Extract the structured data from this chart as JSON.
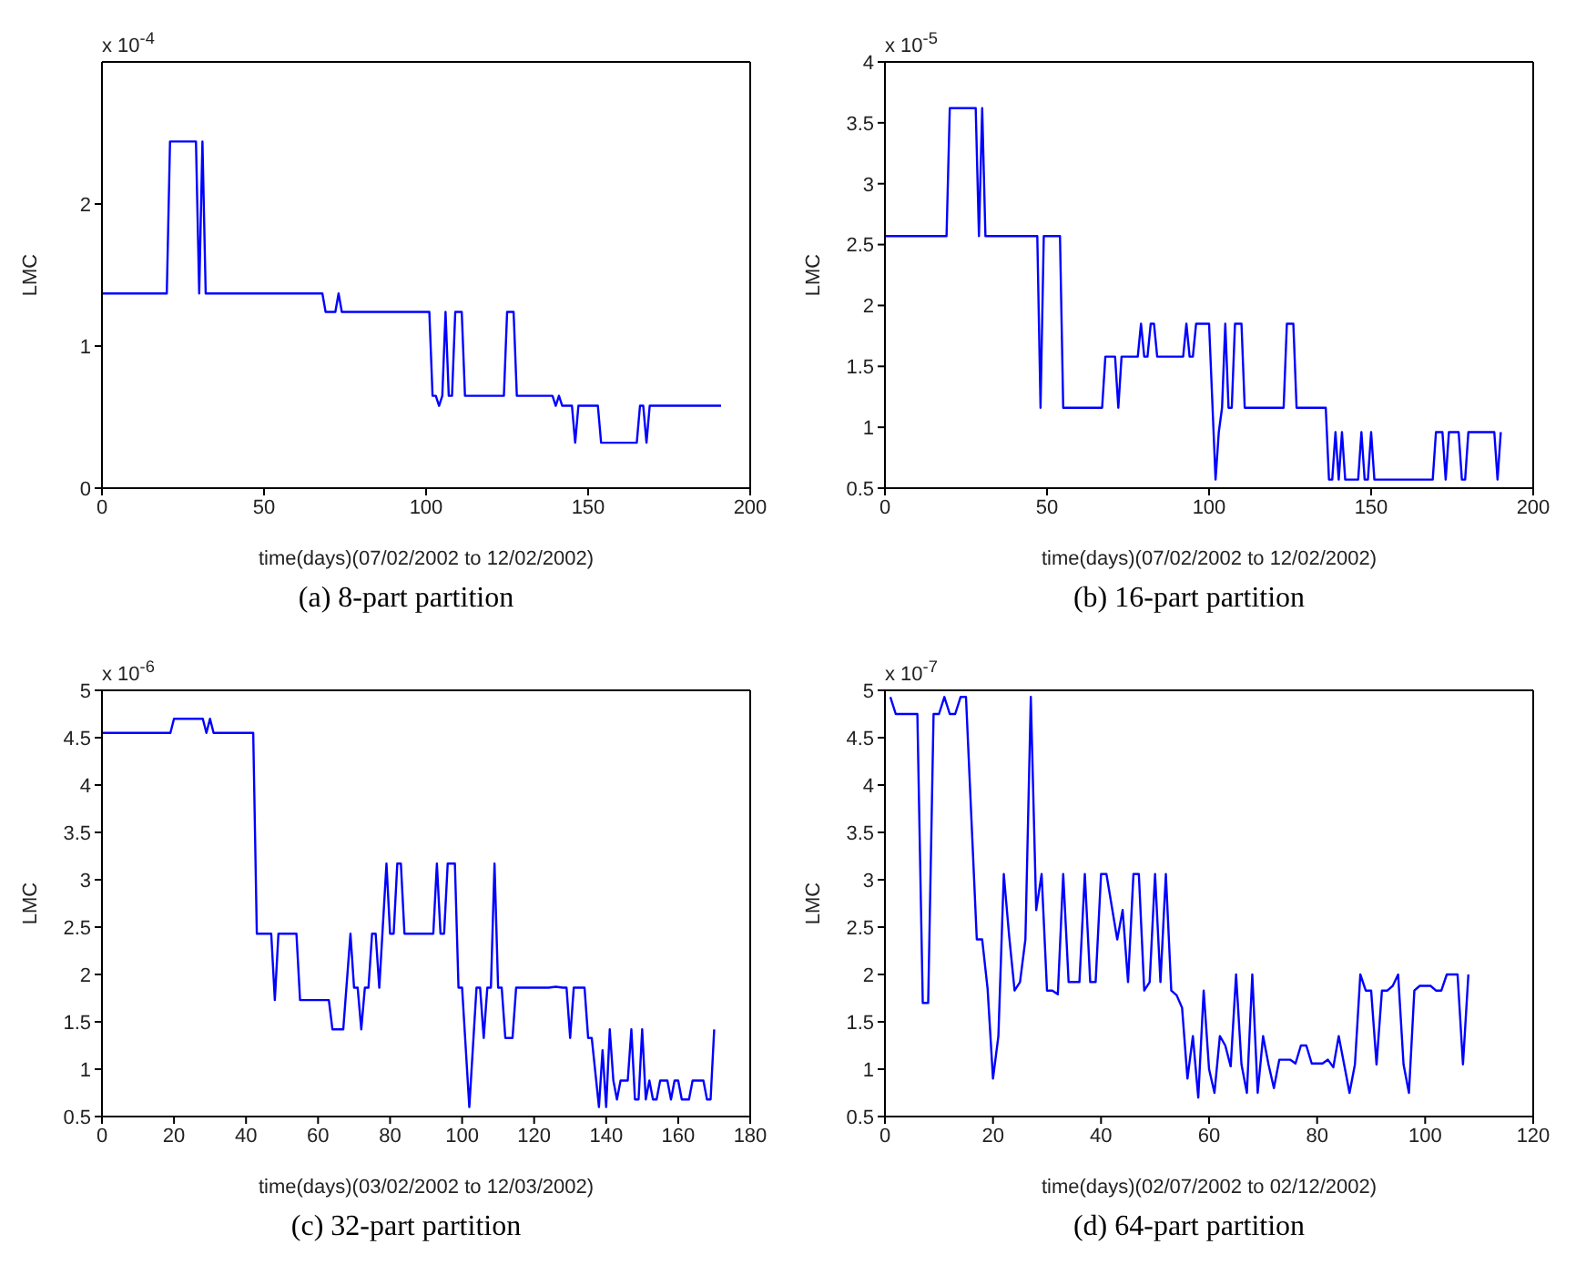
{
  "chart_data": [
    {
      "type": "line",
      "title": "(a)  8-part partition",
      "xlabel": "time(days)(07/02/2002 to 12/02/2002)",
      "ylabel": "LMC",
      "annotations": [
        "x 10$^{-4}$"
      ],
      "xlim": [
        0,
        200
      ],
      "xticks": [
        0,
        50,
        100,
        150,
        200
      ],
      "ylim": [
        0,
        3
      ],
      "yticks": [
        0,
        1,
        2
      ],
      "color": "#0000ff",
      "x": [
        0,
        20,
        21,
        29,
        30,
        31,
        32,
        68,
        69,
        72,
        73,
        74,
        101,
        102,
        103,
        104,
        105,
        106,
        107,
        108,
        109,
        111,
        112,
        124,
        125,
        127,
        128,
        139,
        140,
        141,
        142,
        145,
        146,
        147,
        153,
        154,
        165,
        166,
        167,
        168,
        169,
        191
      ],
      "values": [
        1.37,
        1.37,
        2.44,
        2.44,
        1.37,
        2.44,
        1.37,
        1.37,
        1.24,
        1.24,
        1.37,
        1.24,
        1.24,
        0.65,
        0.65,
        0.58,
        0.65,
        1.24,
        0.65,
        0.65,
        1.24,
        1.24,
        0.65,
        0.65,
        1.24,
        1.24,
        0.65,
        0.65,
        0.58,
        0.65,
        0.58,
        0.58,
        0.32,
        0.58,
        0.58,
        0.32,
        0.32,
        0.58,
        0.58,
        0.32,
        0.58,
        0.58
      ]
    },
    {
      "type": "line",
      "title": "(b)  16-part partition",
      "xlabel": "time(days)(07/02/2002 to 12/02/2002)",
      "ylabel": "LMC",
      "annotations": [
        "x 10$^{-5}$"
      ],
      "xlim": [
        0,
        200
      ],
      "xticks": [
        0,
        50,
        100,
        150,
        200
      ],
      "ylim": [
        0.5,
        4
      ],
      "yticks": [
        0.5,
        1,
        1.5,
        2,
        2.5,
        3,
        3.5,
        4
      ],
      "color": "#0000ff",
      "x": [
        0,
        19,
        20,
        28,
        29,
        30,
        31,
        47,
        48,
        49,
        54,
        55,
        67,
        68,
        71,
        72,
        73,
        78,
        79,
        80,
        81,
        82,
        83,
        84,
        92,
        93,
        94,
        95,
        96,
        100,
        102,
        103,
        104,
        105,
        106,
        107,
        108,
        110,
        111,
        123,
        124,
        126,
        127,
        136,
        137,
        138,
        139,
        140,
        141,
        142,
        146,
        147,
        148,
        149,
        150,
        151,
        169,
        170,
        172,
        173,
        174,
        177,
        178,
        179,
        180,
        188,
        189,
        190
      ],
      "values": [
        2.57,
        2.57,
        3.62,
        3.62,
        2.57,
        3.62,
        2.57,
        2.57,
        1.16,
        2.57,
        2.57,
        1.16,
        1.16,
        1.58,
        1.58,
        1.16,
        1.58,
        1.58,
        1.85,
        1.58,
        1.58,
        1.85,
        1.85,
        1.58,
        1.58,
        1.85,
        1.58,
        1.58,
        1.85,
        1.85,
        0.57,
        0.96,
        1.16,
        1.85,
        1.16,
        1.16,
        1.85,
        1.85,
        1.16,
        1.16,
        1.85,
        1.85,
        1.16,
        1.16,
        0.57,
        0.57,
        0.96,
        0.57,
        0.96,
        0.57,
        0.57,
        0.96,
        0.57,
        0.57,
        0.96,
        0.57,
        0.57,
        0.96,
        0.96,
        0.57,
        0.96,
        0.96,
        0.57,
        0.57,
        0.96,
        0.96,
        0.57,
        0.96
      ]
    },
    {
      "type": "line",
      "title": "(c)  32-part partition",
      "xlabel": "time(days)(03/02/2002 to 12/03/2002)",
      "ylabel": "LMC",
      "annotations": [
        "x 10$^{-6}$"
      ],
      "xlim": [
        0,
        180
      ],
      "xticks": [
        0,
        20,
        40,
        60,
        80,
        100,
        120,
        140,
        160,
        180
      ],
      "ylim": [
        0.5,
        5
      ],
      "yticks": [
        0.5,
        1,
        1.5,
        2,
        2.5,
        3,
        3.5,
        4,
        4.5,
        5
      ],
      "color": "#0000ff",
      "x": [
        0,
        19,
        20,
        28,
        29,
        30,
        31,
        42,
        43,
        47,
        48,
        49,
        54,
        55,
        63,
        64,
        67,
        69,
        70,
        71,
        72,
        73,
        74,
        75,
        76,
        77,
        79,
        80,
        81,
        82,
        83,
        84,
        92,
        93,
        94,
        95,
        96,
        98,
        99,
        100,
        102,
        104,
        105,
        106,
        107,
        108,
        109,
        110,
        111,
        112,
        114,
        115,
        124,
        126,
        128,
        129,
        130,
        131,
        134,
        135,
        136,
        138,
        139,
        140,
        141,
        142,
        143,
        144,
        146,
        147,
        148,
        149,
        150,
        151,
        152,
        153,
        154,
        155,
        157,
        158,
        159,
        160,
        161,
        163,
        164,
        167,
        168,
        169,
        170
      ],
      "values": [
        4.55,
        4.55,
        4.7,
        4.7,
        4.55,
        4.7,
        4.55,
        4.55,
        2.43,
        2.43,
        1.73,
        2.43,
        2.43,
        1.73,
        1.73,
        1.42,
        1.42,
        2.43,
        1.86,
        1.86,
        1.42,
        1.86,
        1.86,
        2.43,
        2.43,
        1.86,
        3.17,
        2.43,
        2.43,
        3.17,
        3.17,
        2.43,
        2.43,
        3.17,
        2.43,
        2.43,
        3.17,
        3.17,
        1.86,
        1.86,
        0.6,
        1.86,
        1.86,
        1.33,
        1.86,
        1.86,
        3.17,
        1.86,
        1.86,
        1.33,
        1.33,
        1.86,
        1.86,
        1.87,
        1.86,
        1.86,
        1.33,
        1.86,
        1.86,
        1.33,
        1.33,
        0.6,
        1.2,
        0.6,
        1.42,
        0.88,
        0.68,
        0.88,
        0.88,
        1.42,
        0.68,
        0.68,
        1.42,
        0.68,
        0.88,
        0.68,
        0.68,
        0.88,
        0.88,
        0.68,
        0.88,
        0.88,
        0.68,
        0.68,
        0.88,
        0.88,
        0.68,
        0.68,
        1.42
      ]
    },
    {
      "type": "line",
      "title": "(d)  64-part partition",
      "xlabel": "time(days)(02/07/2002 to 02/12/2002)",
      "ylabel": "LMC",
      "annotations": [
        "x 10$^{-7}$"
      ],
      "xlim": [
        0,
        120
      ],
      "xticks": [
        0,
        20,
        40,
        60,
        80,
        100,
        120
      ],
      "ylim": [
        0.5,
        5
      ],
      "yticks": [
        0.5,
        1,
        1.5,
        2,
        2.5,
        3,
        3.5,
        4,
        4.5,
        5
      ],
      "color": "#0000ff",
      "x": [
        1,
        2,
        6,
        7,
        8,
        9,
        10,
        11,
        12,
        13,
        14,
        15,
        17,
        18,
        19,
        20,
        21,
        22,
        23,
        24,
        25,
        26,
        27,
        28,
        29,
        30,
        31,
        32,
        33,
        34,
        36,
        37,
        38,
        39,
        40,
        41,
        43,
        44,
        45,
        46,
        47,
        48,
        49,
        50,
        51,
        52,
        53,
        54,
        55,
        56,
        57,
        58,
        59,
        60,
        61,
        62,
        63,
        64,
        65,
        66,
        67,
        68,
        69,
        70,
        71,
        72,
        73,
        75,
        76,
        77,
        78,
        79,
        81,
        82,
        83,
        84,
        85,
        86,
        87,
        88,
        89,
        90,
        91,
        92,
        93,
        94,
        95,
        96,
        97,
        98,
        99,
        101,
        102,
        103,
        104,
        106,
        107,
        108
      ],
      "values": [
        4.93,
        4.75,
        4.75,
        1.7,
        1.7,
        4.75,
        4.75,
        4.93,
        4.75,
        4.75,
        4.93,
        4.93,
        2.37,
        2.37,
        1.85,
        0.9,
        1.35,
        3.06,
        2.4,
        1.83,
        1.92,
        2.37,
        4.93,
        2.68,
        3.06,
        1.83,
        1.83,
        1.79,
        3.06,
        1.92,
        1.92,
        3.06,
        1.92,
        1.92,
        3.06,
        3.06,
        2.37,
        2.68,
        1.92,
        3.06,
        3.06,
        1.83,
        1.92,
        3.06,
        1.92,
        3.06,
        1.83,
        1.78,
        1.65,
        0.9,
        1.35,
        0.7,
        1.83,
        1.0,
        0.75,
        1.35,
        1.25,
        1.03,
        2.0,
        1.05,
        0.75,
        2.0,
        0.75,
        1.35,
        1.05,
        0.8,
        1.1,
        1.1,
        1.06,
        1.25,
        1.25,
        1.06,
        1.06,
        1.1,
        1.02,
        1.35,
        1.05,
        0.75,
        1.05,
        2.0,
        1.83,
        1.83,
        1.05,
        1.83,
        1.83,
        1.88,
        2.0,
        1.05,
        0.75,
        1.83,
        1.88,
        1.88,
        1.83,
        1.83,
        2.0,
        2.0,
        1.05,
        2.0
      ]
    }
  ]
}
